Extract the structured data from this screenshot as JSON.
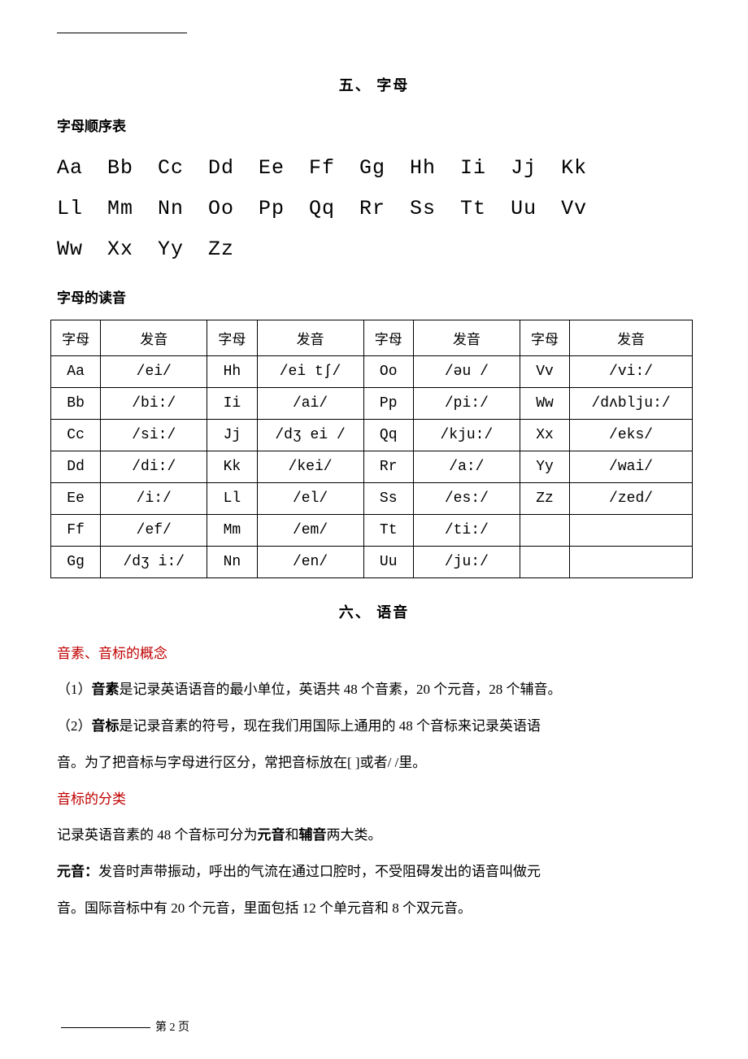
{
  "section5": {
    "title": "五、  字母",
    "sub1": "字母顺序表",
    "alphabet_line1": "Aa  Bb  Cc  Dd  Ee  Ff  Gg  Hh  Ii  Jj  Kk",
    "alphabet_line2": "Ll  Mm  Nn  Oo  Pp  Qq  Rr  Ss  Tt  Uu  Vv",
    "alphabet_line3": "Ww  Xx  Yy  Zz",
    "sub2": "字母的读音",
    "table": {
      "headers": [
        "字母",
        "发音",
        "字母",
        "发音",
        "字母",
        "发音",
        "字母",
        "发音"
      ],
      "rows": [
        [
          "Aa",
          "/ei/",
          "Hh",
          "/ei tʃ/",
          "Oo",
          "/əu /",
          "Vv",
          "/vi:/"
        ],
        [
          "Bb",
          "/bi:/",
          "Ii",
          "/ai/",
          "Pp",
          "/pi:/",
          "Ww",
          "/dʌblju:/"
        ],
        [
          "Cc",
          "/si:/",
          "Jj",
          "/dʒ ei /",
          "Qq",
          "/kju:/",
          "Xx",
          "/eks/"
        ],
        [
          "Dd",
          "/di:/",
          "Kk",
          "/kei/",
          "Rr",
          "/a:/",
          "Yy",
          "/wai/"
        ],
        [
          "Ee",
          "/i:/",
          "Ll",
          "/el/",
          "Ss",
          "/es:/",
          "Zz",
          "/zed/"
        ],
        [
          "Ff",
          "/ef/",
          "Mm",
          "/em/",
          "Tt",
          "/ti:/",
          "",
          ""
        ],
        [
          "Gg",
          "/dʒ i:/",
          "Nn",
          "/en/",
          "Uu",
          "/ju:/",
          "",
          ""
        ]
      ]
    }
  },
  "section6": {
    "title": "六、  语音",
    "heading1": "音素、音标的概念",
    "p1_prefix": "（1）",
    "p1_bold": "音素",
    "p1_rest": "是记录英语语音的最小单位，英语共 48 个音素，20 个元音，28 个辅音。",
    "p2_prefix": "（2）",
    "p2_bold": "音标",
    "p2_rest": "是记录音素的符号，现在我们用国际上通用的 48 个音标来记录英语语",
    "p2_cont": "音。为了把音标与字母进行区分，常把音标放在[  ]或者/  /里。",
    "heading2": "音标的分类",
    "p3_pre": "记录英语音素的 48 个音标可分为",
    "p3_bold1": "元音",
    "p3_mid": "和",
    "p3_bold2": "辅音",
    "p3_rest": "两大类。",
    "p4_bold": "元音：",
    "p4_rest": "发音时声带振动，呼出的气流在通过口腔时，不受阻碍发出的语音叫做元",
    "p4_cont": "音。国际音标中有 20 个元音，里面包括 12 个单元音和 8 个双元音。"
  },
  "footer": "第 2 页"
}
